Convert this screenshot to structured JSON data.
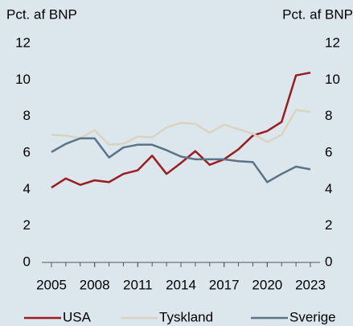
{
  "chart_data": {
    "type": "line",
    "y_label": "Pct. af BNP",
    "y2_label": "Pct. af BNP",
    "x": [
      2005,
      2006,
      2007,
      2008,
      2009,
      2010,
      2011,
      2012,
      2013,
      2014,
      2015,
      2016,
      2017,
      2018,
      2019,
      2020,
      2021,
      2022,
      2023
    ],
    "xlim": [
      2005,
      2023
    ],
    "xticks": [
      2005,
      2008,
      2011,
      2014,
      2017,
      2020,
      2023
    ],
    "ylim": [
      0,
      12
    ],
    "yticks": [
      0,
      2,
      4,
      6,
      8,
      10,
      12
    ],
    "y2lim": [
      0,
      12
    ],
    "y2ticks": [
      0,
      2,
      4,
      6,
      8,
      10,
      12
    ],
    "series": [
      {
        "name": "USA",
        "color": "#9b1b1f",
        "values": [
          4.1,
          4.6,
          4.25,
          4.5,
          4.4,
          4.85,
          5.05,
          5.85,
          4.85,
          5.45,
          6.1,
          5.35,
          5.65,
          6.2,
          6.95,
          7.2,
          7.7,
          10.25,
          10.4
        ]
      },
      {
        "name": "Tyskland",
        "color": "#d9d4c0",
        "values": [
          7.0,
          6.95,
          6.8,
          7.25,
          6.45,
          6.5,
          6.9,
          6.85,
          7.4,
          7.65,
          7.6,
          7.1,
          7.55,
          7.3,
          7.05,
          6.6,
          7.0,
          8.35,
          8.25
        ]
      },
      {
        "name": "Sverige",
        "color": "#5a7486",
        "values": [
          6.05,
          6.5,
          6.8,
          6.8,
          5.75,
          6.3,
          6.45,
          6.45,
          6.15,
          5.8,
          5.65,
          5.65,
          5.65,
          5.55,
          5.5,
          4.4,
          4.85,
          5.25,
          5.1
        ]
      }
    ],
    "legend": "bottom"
  }
}
